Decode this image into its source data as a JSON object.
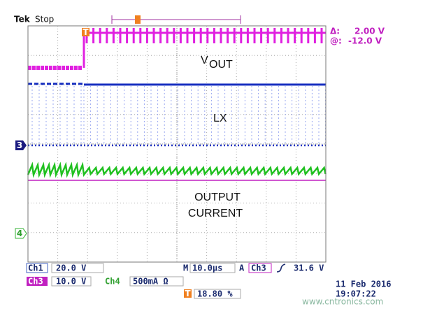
{
  "header": {
    "brand": "Tek",
    "status": "Stop"
  },
  "cursor": {
    "delta_label": "Δ:",
    "delta_value": "2.00 V",
    "at_label": "@:",
    "at_value": "-12.0 V"
  },
  "traces": {
    "vout_main": "V",
    "vout_sub": "OUT",
    "lx": "LX",
    "current_line1": "OUTPUT",
    "current_line2": "CURRENT"
  },
  "markers": {
    "trigger": "T",
    "ch3": "3",
    "ch4": "4"
  },
  "readout": {
    "ch1_name": "Ch1",
    "ch1_scale": "20.0 V",
    "ch3_name": "Ch3",
    "ch3_scale": "10.0 V",
    "ch4_name": "Ch4",
    "ch4_scale": "500mA Ω",
    "time_label": "M",
    "time_scale": "10.0µs",
    "trig_mode": "A",
    "trig_source": "Ch3",
    "trig_level": "31.6 V",
    "trig_marker": "T",
    "trig_pos": "18.80 %",
    "date": "11 Feb 2016",
    "time": "19:07:22"
  },
  "watermark": "www.cntronics.com"
}
